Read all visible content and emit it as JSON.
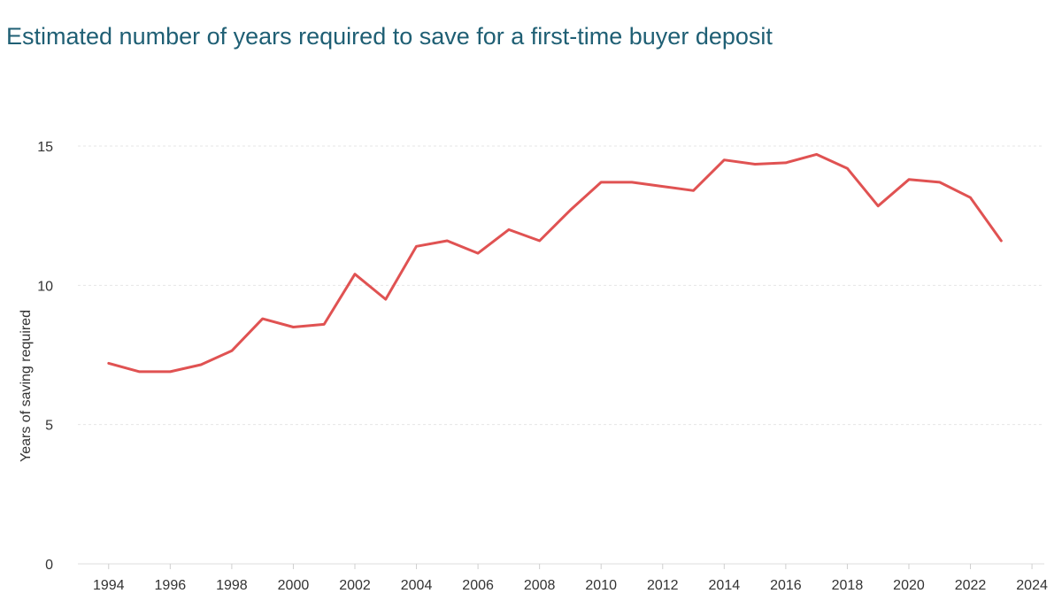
{
  "chart_data": {
    "type": "line",
    "title": "Estimated number of years required to save for a first-time buyer deposit",
    "ylabel": "Years of saving required",
    "xlabel": "",
    "xlim": [
      1993,
      2024.4
    ],
    "ylim": [
      0,
      15
    ],
    "yticks": [
      0,
      5,
      10,
      15
    ],
    "xticks": [
      1994,
      1996,
      1998,
      2000,
      2002,
      2004,
      2006,
      2008,
      2010,
      2012,
      2014,
      2016,
      2018,
      2020,
      2022,
      2024
    ],
    "ytick_labels": [
      "0",
      "5",
      "10",
      "15"
    ],
    "xtick_labels": [
      "1994",
      "1996",
      "1998",
      "2000",
      "2002",
      "2004",
      "2006",
      "2008",
      "2010",
      "2012",
      "2014",
      "2016",
      "2018",
      "2020",
      "2022",
      "2024"
    ],
    "grid": true,
    "legend": "none",
    "series": [
      {
        "color": "#e05252",
        "x": [
          1994,
          1995,
          1996,
          1997,
          1998,
          1999,
          2000,
          2001,
          2002,
          2003,
          2004,
          2005,
          2006,
          2007,
          2008,
          2009,
          2010,
          2011,
          2012,
          2013,
          2014,
          2015,
          2016,
          2017,
          2018,
          2019,
          2020,
          2021,
          2022,
          2023
        ],
        "values": [
          7.2,
          6.9,
          6.9,
          7.15,
          7.65,
          8.8,
          8.5,
          8.6,
          10.4,
          9.5,
          11.4,
          11.6,
          11.15,
          12.0,
          11.6,
          12.7,
          13.7,
          13.7,
          13.55,
          13.4,
          14.5,
          14.35,
          14.4,
          14.7,
          14.2,
          12.85,
          13.8,
          13.7,
          13.15,
          11.6
        ]
      }
    ]
  }
}
